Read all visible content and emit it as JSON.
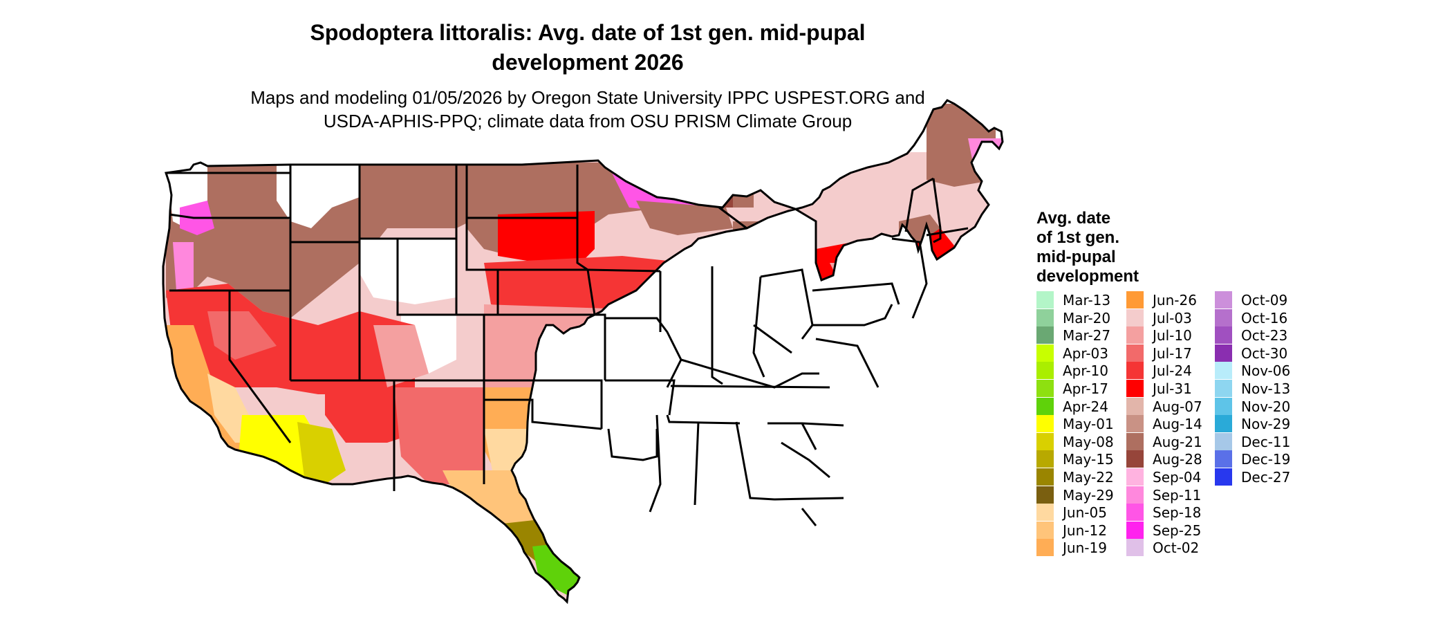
{
  "title": {
    "line1": "Spodoptera littoralis: Avg. date of 1st gen. mid-pupal",
    "line2": "development 2026"
  },
  "subtitle": {
    "line1": "Maps and modeling 01/05/2026 by Oregon State University IPPC USPEST.ORG and",
    "line2": "USDA-APHIS-PPQ; climate data from OSU PRISM Climate Group"
  },
  "legend": {
    "title_lines": [
      "Avg. date",
      "of 1st gen.",
      "mid-pupal",
      "development"
    ],
    "columns": [
      [
        {
          "label": "Mar-13",
          "color": "#b3f5c8"
        },
        {
          "label": "Mar-20",
          "color": "#8fd19b"
        },
        {
          "label": "Mar-27",
          "color": "#6aa873"
        },
        {
          "label": "Apr-03",
          "color": "#c8ff00"
        },
        {
          "label": "Apr-10",
          "color": "#aaee00"
        },
        {
          "label": "Apr-17",
          "color": "#8ee010"
        },
        {
          "label": "Apr-24",
          "color": "#5fd20a"
        },
        {
          "label": "May-01",
          "color": "#ffff00"
        },
        {
          "label": "May-08",
          "color": "#d9d000"
        },
        {
          "label": "May-15",
          "color": "#b8a900"
        },
        {
          "label": "May-22",
          "color": "#9a8500"
        },
        {
          "label": "May-29",
          "color": "#7a5f10"
        },
        {
          "label": "Jun-05",
          "color": "#ffd9a0"
        },
        {
          "label": "Jun-12",
          "color": "#ffc47a"
        },
        {
          "label": "Jun-19",
          "color": "#ffad55"
        }
      ],
      [
        {
          "label": "Jun-26",
          "color": "#ff9a35"
        },
        {
          "label": "Jul-03",
          "color": "#f4cccc"
        },
        {
          "label": "Jul-10",
          "color": "#f4a0a0"
        },
        {
          "label": "Jul-17",
          "color": "#f26a6a"
        },
        {
          "label": "Jul-24",
          "color": "#f53535"
        },
        {
          "label": "Jul-31",
          "color": "#ff0000"
        },
        {
          "label": "Aug-07",
          "color": "#e2b5aa"
        },
        {
          "label": "Aug-14",
          "color": "#c99285"
        },
        {
          "label": "Aug-21",
          "color": "#ae6f60"
        },
        {
          "label": "Aug-28",
          "color": "#96453a"
        },
        {
          "label": "Sep-04",
          "color": "#ffb3e0"
        },
        {
          "label": "Sep-11",
          "color": "#ff88dd"
        },
        {
          "label": "Sep-18",
          "color": "#ff55e6"
        },
        {
          "label": "Sep-25",
          "color": "#ff22ee"
        },
        {
          "label": "Oct-02",
          "color": "#e0c0e8"
        }
      ],
      [
        {
          "label": "Oct-09",
          "color": "#cc8fdb"
        },
        {
          "label": "Oct-16",
          "color": "#b570cc"
        },
        {
          "label": "Oct-23",
          "color": "#a050c0"
        },
        {
          "label": "Oct-30",
          "color": "#8a2eb0"
        },
        {
          "label": "Nov-06",
          "color": "#b8ecfa"
        },
        {
          "label": "Nov-13",
          "color": "#8ed6f0"
        },
        {
          "label": "Nov-20",
          "color": "#5ec4e8"
        },
        {
          "label": "Nov-29",
          "color": "#2aaad8"
        },
        {
          "label": "Dec-11",
          "color": "#a6c8e8"
        },
        {
          "label": "Dec-19",
          "color": "#5a70e8"
        },
        {
          "label": "Dec-27",
          "color": "#2838ee"
        }
      ]
    ]
  }
}
